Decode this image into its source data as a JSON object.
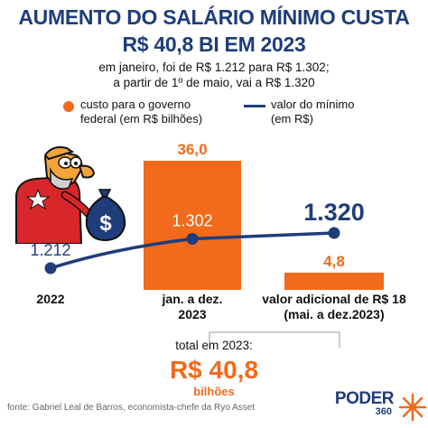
{
  "header": {
    "title_line1": "AUMENTO DO SALÁRIO MÍNIMO CUSTA",
    "title_line2": "R$ 40,8 BI EM 2023",
    "subtitle_line1": "em janeiro, foi de R$ 1.212 para R$ 1.302;",
    "subtitle_line2": "a partir de 1º de maio, vai a R$ 1.320"
  },
  "legend": {
    "cost_line1": "custo para o governo",
    "cost_line2": "federal (em R$ bilhões)",
    "wage_line1": "valor do mínimo",
    "wage_line2": "(em R$)"
  },
  "chart_data": {
    "type": "bar+line",
    "categories": [
      "2022",
      "jan. a dez.\n2023",
      "valor adicional de R$ 18\n(mai. a dez.2023)"
    ],
    "category_lines": [
      [
        "2022"
      ],
      [
        "jan. a dez.",
        "2023"
      ],
      [
        "valor adicional de R$ 18",
        "(mai. a dez.2023)"
      ]
    ],
    "series": [
      {
        "name": "custo para o governo federal (em R$ bilhões)",
        "kind": "bar",
        "values": [
          null,
          36.0,
          4.8
        ],
        "labels": [
          "",
          "36,0",
          "4,8"
        ],
        "color": "#f26a1b"
      },
      {
        "name": "valor do mínimo (em R$)",
        "kind": "line",
        "values": [
          1212,
          1302,
          1320
        ],
        "labels": [
          "1.212",
          "1.302",
          "1.320"
        ],
        "color": "#1f3d7a"
      }
    ]
  },
  "total": {
    "label": "total em 2023:",
    "value": "R$ 40,8",
    "unit": "bilhões"
  },
  "footer": {
    "source": "fonte: Gabriel Leal de Barros, economista-chefe da Ryo Asset",
    "logo_word": "PODER",
    "logo_number": "360"
  },
  "colors": {
    "orange": "#f26a1b",
    "navy": "#1f3d7a"
  }
}
